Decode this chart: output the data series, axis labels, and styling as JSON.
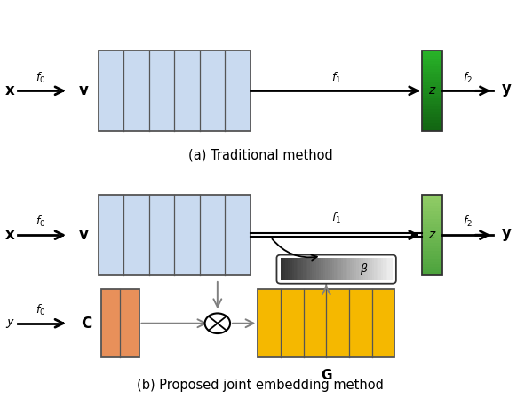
{
  "fig_width": 5.82,
  "fig_height": 4.58,
  "dpi": 100,
  "bg_color": "#ffffff",
  "blue_box_color": "#c9daf0",
  "blue_box_edge": "#555555",
  "green_box_color_top": "#5aaa4a",
  "green_box_color_bot": "#aad890",
  "green_box_edge": "#333333",
  "orange_box_color": "#e8905a",
  "orange_box_edge": "#555555",
  "gold_box_color": "#f5b800",
  "gold_box_edge": "#555555",
  "caption_a": "(a) Traditional method",
  "caption_b": "(b) Proposed joint embedding method"
}
